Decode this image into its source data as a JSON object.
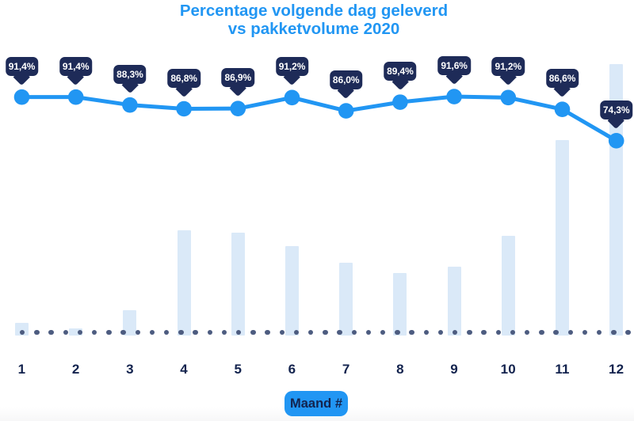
{
  "colors": {
    "accent_blue": "#2196f3",
    "tooltip_navy": "#1e2b58",
    "label_navy": "#13234e",
    "bar_light_blue": "#dae9f8",
    "dot_gray_blue": "#4d5c80",
    "background": "#ffffff"
  },
  "chart_data": {
    "type": "line+bar",
    "title": "Percentage volgende dag geleverd vs pakketvolume 2020",
    "title_line1": "Percentage volgende dag geleverd",
    "title_line2": "vs pakketvolume 2020",
    "xlabel": "Maand #",
    "categories": [
      "1",
      "2",
      "3",
      "4",
      "5",
      "6",
      "7",
      "8",
      "9",
      "10",
      "11",
      "12"
    ],
    "series": [
      {
        "name": "percentage volgende dag geleverd",
        "type": "line",
        "unit": "%",
        "values": [
          91.4,
          91.4,
          88.3,
          86.8,
          86.9,
          91.2,
          86.0,
          89.4,
          91.6,
          91.2,
          86.6,
          74.3
        ],
        "labels": [
          "91,4%",
          "91,4%",
          "88,3%",
          "86,8%",
          "86,9%",
          "91,2%",
          "86,0%",
          "89,4%",
          "91,6%",
          "91,2%",
          "86,6%",
          "74,3%"
        ]
      },
      {
        "name": "pakketvolume",
        "type": "bar",
        "unit": "relative height (no axis shown)",
        "values": [
          16,
          9,
          32,
          133,
          130,
          113,
          92,
          79,
          87,
          126,
          247,
          343
        ]
      }
    ],
    "ylim_percent": [
      0,
      100
    ],
    "baseline": "dotted",
    "legend": "none",
    "grid": "off"
  }
}
